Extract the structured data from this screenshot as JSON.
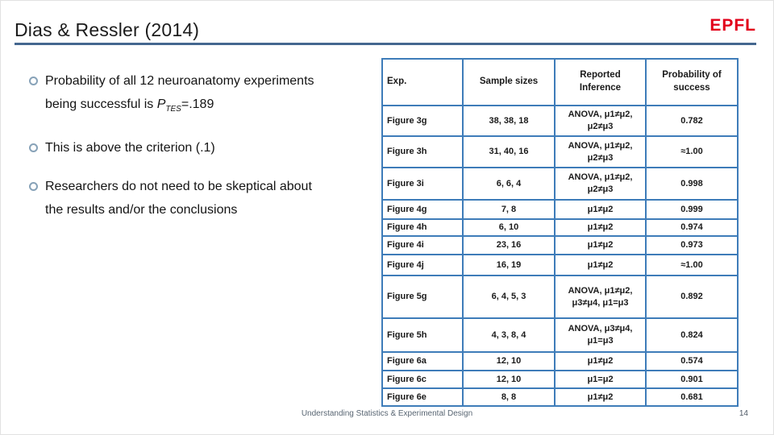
{
  "title": "Dias & Ressler (2014)",
  "logo": {
    "text": "EPFL"
  },
  "bullets": [
    {
      "text_before": "Probability of all 12 neuroanatomy experiments\nbeing successful is ",
      "var": "P",
      "var_sub": "TES",
      "text_after": "=.189"
    },
    {
      "text": "This is above the criterion (.1)"
    },
    {
      "text": "Researchers do not need to be skeptical about\nthe results and/or the conclusions"
    }
  ],
  "table": {
    "columns": [
      "Exp.",
      "Sample sizes",
      "Reported\nInference",
      "Probability of\nsuccess"
    ],
    "rows": [
      {
        "exp": "Figure 3g",
        "sample_sizes": "38, 38, 18",
        "inference": "ANOVA, μ1≠μ2,\nμ2≠μ3",
        "probability": "0.782"
      },
      {
        "exp": "Figure 3h",
        "sample_sizes": "31, 40, 16",
        "inference": "ANOVA, μ1≠μ2,\nμ2≠μ3",
        "probability": "≈1.00"
      },
      {
        "exp": "Figure 3i",
        "sample_sizes": "6, 6, 4",
        "inference": "ANOVA, μ1≠μ2,\nμ2≠μ3",
        "probability": "0.998"
      },
      {
        "exp": "Figure 4g",
        "sample_sizes": "7, 8",
        "inference": "μ1≠μ2",
        "probability": "0.999"
      },
      {
        "exp": "Figure 4h",
        "sample_sizes": "6, 10",
        "inference": "μ1≠μ2",
        "probability": "0.974"
      },
      {
        "exp": "Figure 4i",
        "sample_sizes": "23, 16",
        "inference": "μ1≠μ2",
        "probability": "0.973"
      },
      {
        "exp": "Figure 4j",
        "sample_sizes": "16, 19",
        "inference": "μ1≠μ2",
        "probability": "≈1.00"
      },
      {
        "exp": "Figure 5g",
        "sample_sizes": "6, 4, 5, 3",
        "inference": "ANOVA, μ1≠μ2,\nμ3≠μ4, μ1=μ3",
        "probability": "0.892"
      },
      {
        "exp": "Figure 5h",
        "sample_sizes": "4, 3, 8, 4",
        "inference": "ANOVA, μ3≠μ4,\nμ1=μ3",
        "probability": "0.824"
      },
      {
        "exp": "Figure 6a",
        "sample_sizes": "12, 10",
        "inference": "μ1≠μ2",
        "probability": "0.574"
      },
      {
        "exp": "Figure 6c",
        "sample_sizes": "12, 10",
        "inference": "μ1=μ2",
        "probability": "0.901"
      },
      {
        "exp": "Figure 6e",
        "sample_sizes": "8, 8",
        "inference": "μ1≠μ2",
        "probability": "0.681"
      }
    ]
  },
  "footer": {
    "text": "Understanding Statistics & Experimental Design",
    "page_number": "14"
  },
  "colors": {
    "accent_border": "#3e7cb9",
    "title_rule": "#44678f",
    "logo_red": "#e2001a"
  }
}
